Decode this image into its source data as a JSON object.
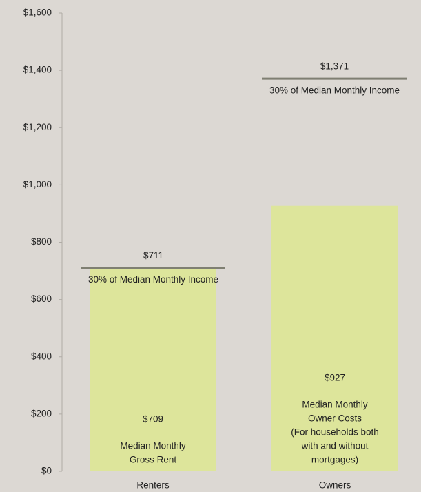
{
  "chart_data": {
    "type": "bar",
    "categories": [
      "Renters",
      "Owners"
    ],
    "values": [
      709,
      927
    ],
    "value_labels": [
      "$709",
      "$927"
    ],
    "bar_labels": [
      [
        "Median Monthly",
        "Gross Rent"
      ],
      [
        "Median Monthly",
        "Owner Costs",
        "(For households both",
        "with and without",
        "mortgages)"
      ]
    ],
    "color": "#dde59b",
    "reference": {
      "name": "30% of Median Monthly Income",
      "color": "#7f7f72",
      "values": [
        711,
        1371
      ],
      "value_labels": [
        "$711",
        "$1,371"
      ]
    },
    "ylim": [
      0,
      1600
    ],
    "yticks": [
      {
        "value": 0,
        "label": "$0"
      },
      {
        "value": 200,
        "label": "$200"
      },
      {
        "value": 400,
        "label": "$400"
      },
      {
        "value": 600,
        "label": "$600"
      },
      {
        "value": 800,
        "label": "$800"
      },
      {
        "value": 1000,
        "label": "$1,000"
      },
      {
        "value": 1200,
        "label": "$1,200"
      },
      {
        "value": 1400,
        "label": "$1,400"
      },
      {
        "value": 1600,
        "label": "$1,600"
      }
    ],
    "grid": false
  }
}
